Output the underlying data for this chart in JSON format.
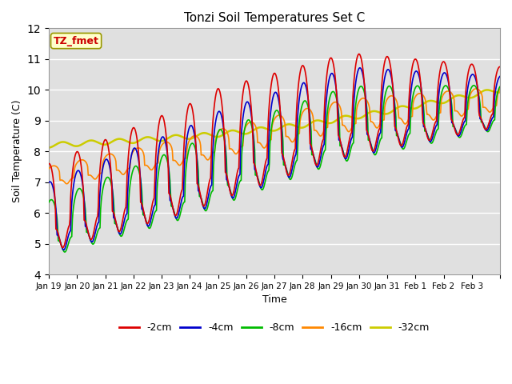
{
  "title": "Tonzi Soil Temperatures Set C",
  "xlabel": "Time",
  "ylabel": "Soil Temperature (C)",
  "ylim": [
    4.0,
    12.0
  ],
  "yticks": [
    4.0,
    5.0,
    6.0,
    7.0,
    8.0,
    9.0,
    10.0,
    11.0,
    12.0
  ],
  "bg_color": "#e0e0e0",
  "series_colors": {
    "-2cm": "#dd0000",
    "-4cm": "#0000cc",
    "-8cm": "#00bb00",
    "-16cm": "#ff8800",
    "-32cm": "#cccc00"
  },
  "legend_label": "TZ_fmet",
  "legend_box_color": "#ffffcc",
  "legend_box_edge": "#999900"
}
